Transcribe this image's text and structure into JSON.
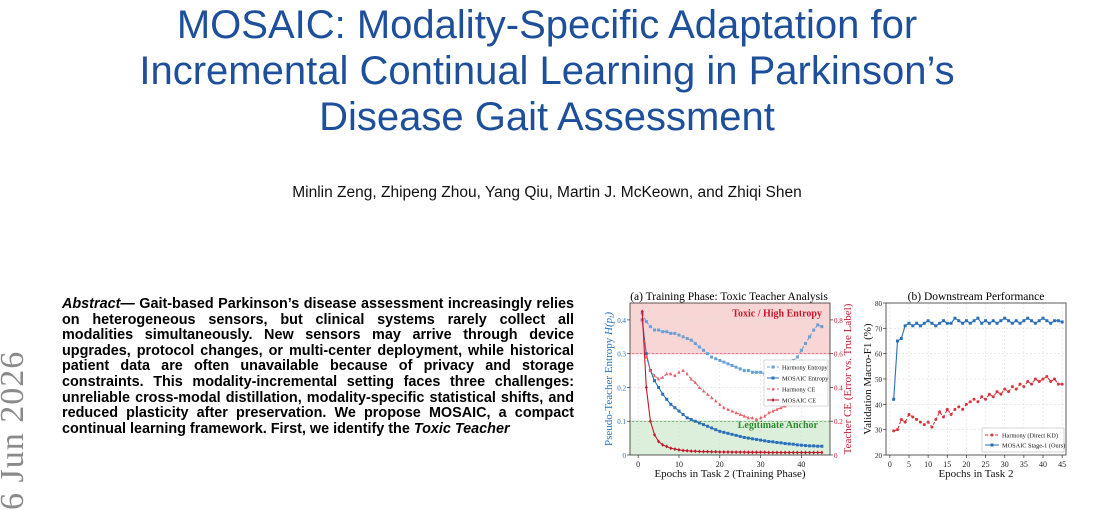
{
  "paper": {
    "title_line1": "MOSAIC: Modality-Specific Adaptation for",
    "title_line2": "Incremental Continual Learning in Parkinson’s",
    "title_line3": "Disease Gait Assessment",
    "authors": "Minlin Zeng, Zhipeng Zhou, Yang Qiu, Martin J. McKeown, and Zhiqi Shen",
    "arxiv_margin": "6 Jun 2026",
    "abstract_lead": "Abstract—",
    "abstract_body": " Gait-based Parkinson’s disease assessment increasingly relies on heterogeneous sensors, but clinical systems rarely collect all modalities simultaneously. New sensors may arrive through device upgrades, protocol changes, or multi-center deployment, while historical patient data are often unavailable because of privacy and storage constraints. This modality-incremental setting faces three challenges: unreliable cross-modal distillation, modality-specific statistical shifts, and reduced plasticity after preservation. We propose MOSAIC, a compact continual learning framework. First, we identify the ",
    "abstract_toxic": "Toxic Teacher"
  },
  "chart_data": [
    {
      "type": "line",
      "title": "(a) Training Phase: Toxic Teacher Analysis",
      "xlabel": "Epochs in Task 2 (Training Phase)",
      "ylabel": "Pseudo-Teacher Entropy H(p_t)",
      "y2label": "Teacher CE (Error vs. True Label)",
      "xlim": [
        -2,
        47
      ],
      "ylim": [
        0,
        0.45
      ],
      "y2lim": [
        0,
        0.9
      ],
      "xticks": [
        0,
        10,
        20,
        30,
        40
      ],
      "yticks": [
        0,
        0.1,
        0.2,
        0.3,
        0.4
      ],
      "y2ticks": [
        0,
        0.2,
        0.4,
        0.6,
        0.8
      ],
      "bands": [
        {
          "label": "Toxic / High Entropy",
          "from": 0.3,
          "to": 0.45,
          "color": "#f6c8c8"
        },
        {
          "label": "Legitimate Anchor",
          "from": 0.0,
          "to": 0.1,
          "color": "#cfe9cf"
        }
      ],
      "legend": "center-right",
      "grid": true,
      "x": [
        1,
        2,
        3,
        4,
        5,
        6,
        7,
        8,
        9,
        10,
        11,
        12,
        13,
        14,
        15,
        16,
        17,
        18,
        19,
        20,
        21,
        22,
        23,
        24,
        25,
        26,
        27,
        28,
        29,
        30,
        31,
        32,
        33,
        34,
        35,
        36,
        37,
        38,
        39,
        40,
        41,
        42,
        43,
        44,
        45
      ],
      "series": [
        {
          "name": "Harmony Entropy",
          "axis": "left",
          "color": "#6a9fd4",
          "marker": "square",
          "dashed": true,
          "values": [
            0.42,
            0.395,
            0.38,
            0.37,
            0.37,
            0.365,
            0.365,
            0.36,
            0.36,
            0.355,
            0.35,
            0.345,
            0.34,
            0.33,
            0.32,
            0.31,
            0.3,
            0.29,
            0.285,
            0.28,
            0.275,
            0.27,
            0.265,
            0.26,
            0.255,
            0.25,
            0.25,
            0.245,
            0.245,
            0.245,
            0.24,
            0.24,
            0.245,
            0.25,
            0.255,
            0.26,
            0.27,
            0.28,
            0.29,
            0.31,
            0.33,
            0.35,
            0.37,
            0.385,
            0.38
          ]
        },
        {
          "name": "MOSAIC Entropy",
          "axis": "left",
          "color": "#2a6fb8",
          "marker": "square",
          "dashed": false,
          "values": [
            0.4,
            0.3,
            0.25,
            0.22,
            0.2,
            0.18,
            0.165,
            0.15,
            0.14,
            0.13,
            0.12,
            0.11,
            0.105,
            0.1,
            0.095,
            0.09,
            0.085,
            0.08,
            0.075,
            0.07,
            0.067,
            0.064,
            0.061,
            0.058,
            0.055,
            0.052,
            0.05,
            0.048,
            0.046,
            0.044,
            0.042,
            0.04,
            0.039,
            0.037,
            0.036,
            0.034,
            0.033,
            0.032,
            0.03,
            0.029,
            0.028,
            0.027,
            0.027,
            0.026,
            0.026
          ]
        },
        {
          "name": "Harmony CE",
          "axis": "right",
          "color": "#e8606a",
          "marker": "triangle",
          "dashed": true,
          "values": [
            0.8,
            0.58,
            0.5,
            0.47,
            0.45,
            0.46,
            0.48,
            0.48,
            0.47,
            0.49,
            0.5,
            0.48,
            0.45,
            0.43,
            0.4,
            0.38,
            0.36,
            0.34,
            0.32,
            0.3,
            0.28,
            0.27,
            0.26,
            0.25,
            0.24,
            0.23,
            0.22,
            0.22,
            0.21,
            0.22,
            0.23,
            0.25,
            0.26,
            0.27,
            0.28,
            0.29,
            0.3,
            0.31,
            0.32,
            0.34,
            0.36,
            0.38,
            0.37,
            0.36,
            0.35
          ]
        },
        {
          "name": "MOSAIC CE",
          "axis": "right",
          "color": "#c0192b",
          "marker": "diamond",
          "dashed": false,
          "values": [
            0.85,
            0.4,
            0.2,
            0.12,
            0.08,
            0.06,
            0.05,
            0.04,
            0.035,
            0.03,
            0.027,
            0.025,
            0.023,
            0.022,
            0.021,
            0.02,
            0.02,
            0.019,
            0.019,
            0.018,
            0.018,
            0.018,
            0.017,
            0.017,
            0.017,
            0.017,
            0.016,
            0.016,
            0.016,
            0.016,
            0.016,
            0.015,
            0.015,
            0.015,
            0.015,
            0.015,
            0.015,
            0.015,
            0.015,
            0.015,
            0.015,
            0.015,
            0.015,
            0.015,
            0.015
          ]
        }
      ]
    },
    {
      "type": "line",
      "title": "(b) Downstream Performance",
      "xlabel": "Epochs in Task 2",
      "ylabel": "Validation Macro-F1 (%)",
      "xlim": [
        -1,
        46
      ],
      "ylim": [
        20,
        80
      ],
      "xticks": [
        0,
        5,
        10,
        15,
        20,
        25,
        30,
        35,
        40,
        45
      ],
      "yticks": [
        20,
        30,
        40,
        50,
        60,
        70,
        80
      ],
      "legend": "bottom-right",
      "grid": true,
      "x": [
        1,
        2,
        3,
        4,
        5,
        6,
        7,
        8,
        9,
        10,
        11,
        12,
        13,
        14,
        15,
        16,
        17,
        18,
        19,
        20,
        21,
        22,
        23,
        24,
        25,
        26,
        27,
        28,
        29,
        30,
        31,
        32,
        33,
        34,
        35,
        36,
        37,
        38,
        39,
        40,
        41,
        42,
        43,
        44,
        45
      ],
      "series": [
        {
          "name": "Harmony (Direct KD)",
          "color": "#d6343f",
          "marker": "circle",
          "dashed": true,
          "values": [
            29.5,
            30,
            34,
            33,
            36,
            35,
            34,
            33,
            32,
            33,
            31,
            34,
            37,
            35,
            38,
            36,
            38,
            39,
            38,
            40,
            41,
            42,
            41,
            43,
            42,
            44,
            43,
            45,
            44,
            46,
            45,
            47,
            46,
            48,
            47,
            49,
            48,
            50,
            49,
            50,
            51,
            49,
            50,
            48,
            48
          ]
        },
        {
          "name": "MOSAIC Stage-1 (Ours)",
          "color": "#2a6fb8",
          "marker": "square",
          "dashed": false,
          "values": [
            42,
            65,
            66,
            71,
            72,
            71,
            72,
            71,
            72,
            73,
            72,
            71,
            72,
            73,
            72,
            72,
            74,
            73,
            72,
            73,
            72,
            73,
            74,
            72,
            73,
            72,
            73,
            72,
            73,
            74,
            73,
            72,
            73,
            72,
            73,
            74,
            73,
            72,
            73,
            74,
            73,
            72,
            73,
            73,
            72.5
          ]
        }
      ]
    }
  ]
}
